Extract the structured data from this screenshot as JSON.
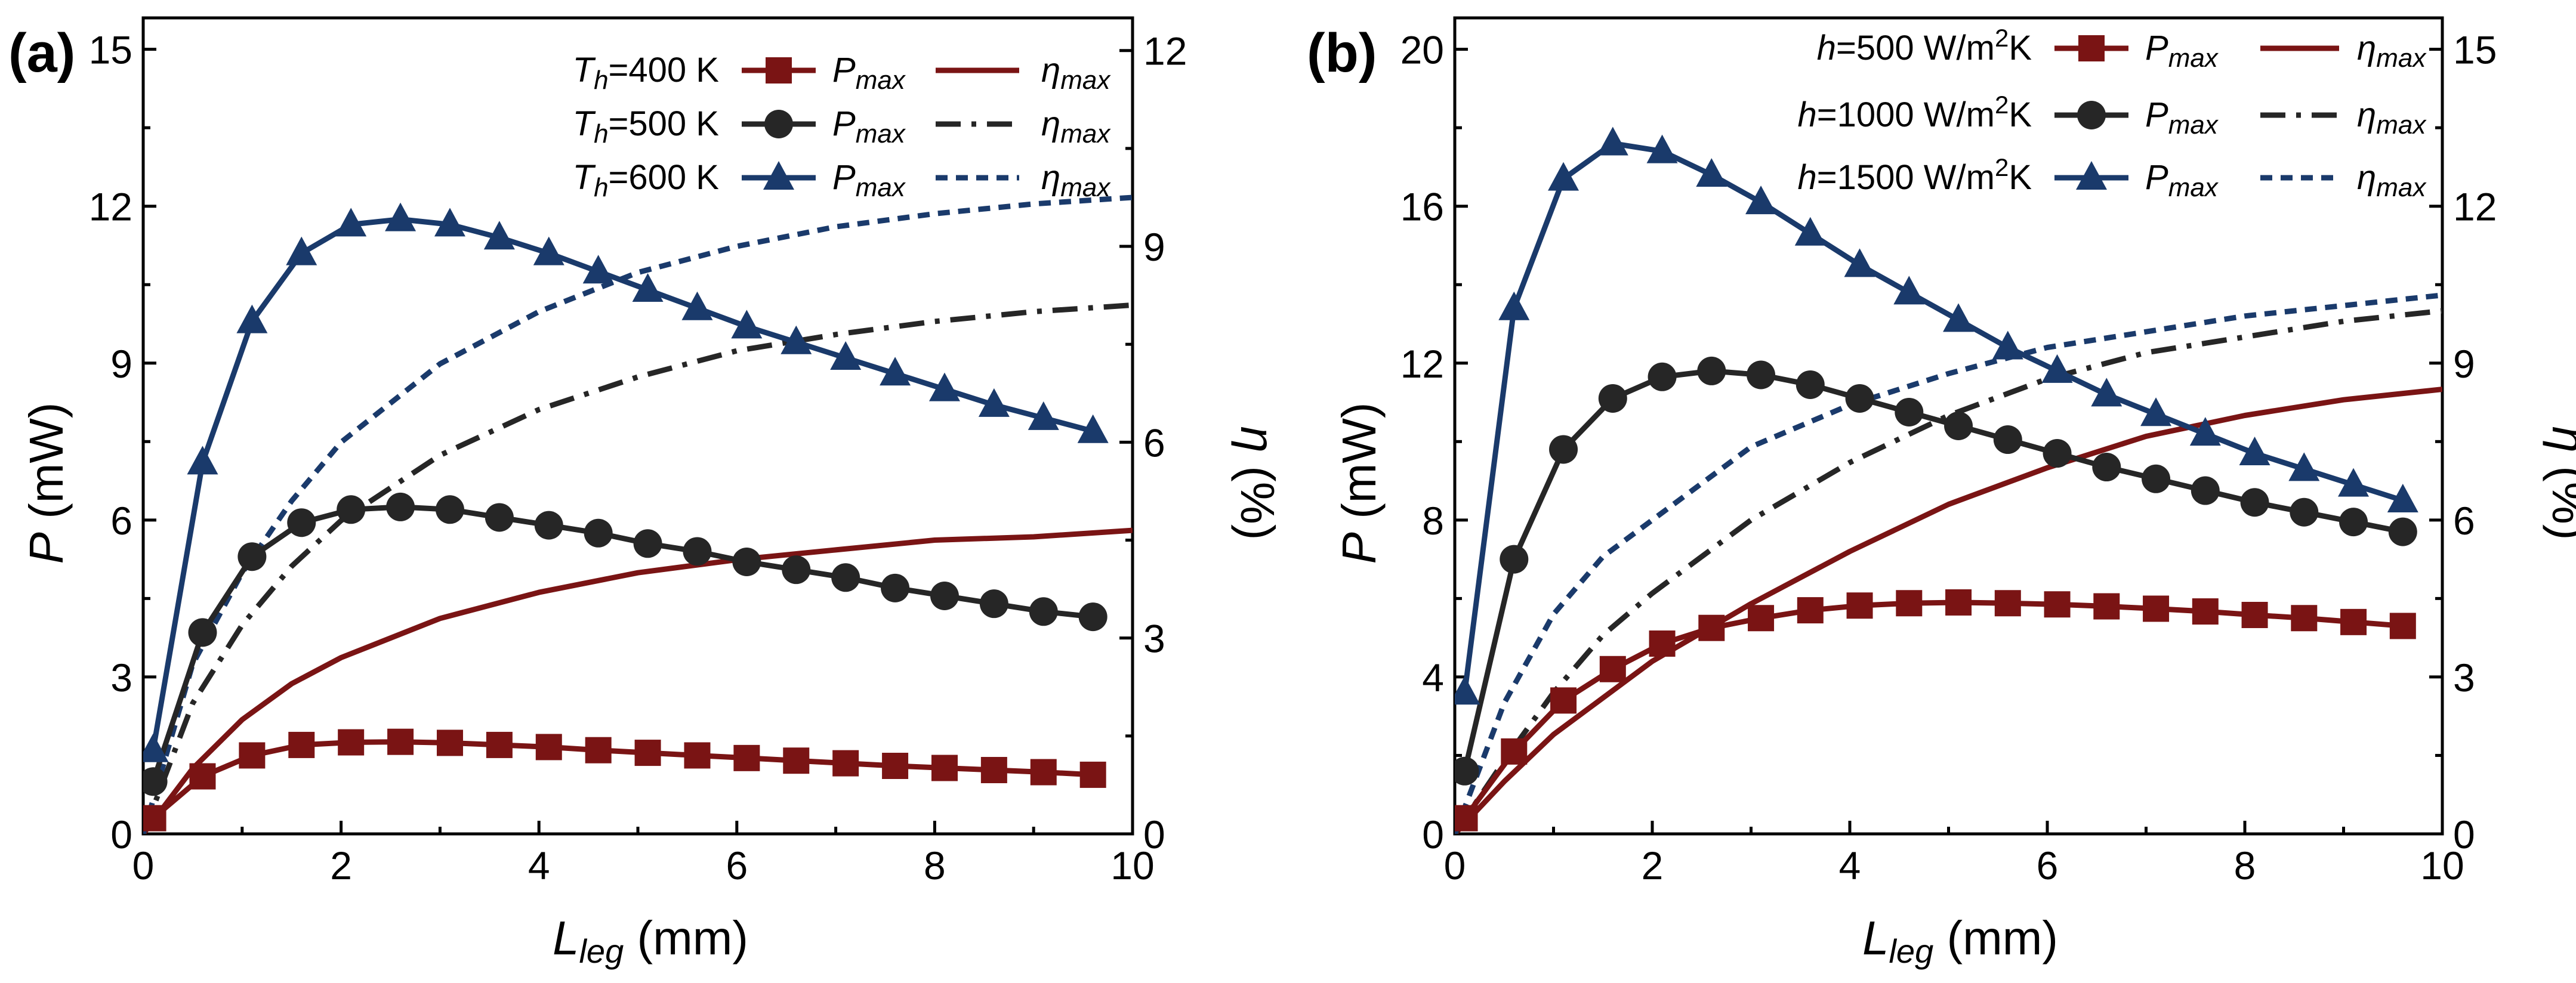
{
  "colors": {
    "red": "#7a1414",
    "black": "#262626",
    "blue": "#1a3a6b"
  },
  "chart_data": [
    {
      "type": "line",
      "panel_label": "(a)",
      "xlabel": "L_leg (mm)",
      "xlabel_parts": {
        "main": "L",
        "sub": "leg",
        "unit": " (mm)"
      },
      "ylabel": "P (mW)",
      "ylabel_parts": {
        "sym": "P",
        "unit": " (mW)"
      },
      "y2label": "η (%)",
      "y2label_parts": {
        "sym": "η",
        "unit": " (%)"
      },
      "xlim": [
        0,
        10
      ],
      "ylim": [
        0,
        15.6
      ],
      "y2lim": [
        0,
        12.5
      ],
      "xticks": [
        "0",
        "2",
        "4",
        "6",
        "8",
        "10"
      ],
      "yticks": [
        "0",
        "3",
        "6",
        "9",
        "12",
        "15"
      ],
      "y2ticks": [
        "0",
        "3",
        "6",
        "9",
        "12"
      ],
      "legend": {
        "position": "top-right",
        "rows": [
          {
            "label": "T_h=400 K",
            "var": "T",
            "sub": "h",
            "rest": "=400 K",
            "sup": "",
            "tail": ""
          },
          {
            "label": "T_h=500 K",
            "var": "T",
            "sub": "h",
            "rest": "=500 K",
            "sup": "",
            "tail": ""
          },
          {
            "label": "T_h=600 K",
            "var": "T",
            "sub": "h",
            "rest": "=600 K",
            "sup": "",
            "tail": ""
          }
        ],
        "pmax_label": {
          "sym": "P",
          "sub": "max"
        },
        "eta_label": {
          "sym": "η",
          "sub": "max"
        }
      },
      "x": [
        0.1,
        0.6,
        1.1,
        1.6,
        2.1,
        2.6,
        3.1,
        3.6,
        4.1,
        4.6,
        5.1,
        5.6,
        6.1,
        6.6,
        7.1,
        7.6,
        8.1,
        8.6,
        9.1,
        9.6
      ],
      "series": [
        {
          "name": "P_max T_h=400 K",
          "axis": "left",
          "marker": "square",
          "color": "red",
          "values": [
            0.3,
            1.1,
            1.5,
            1.7,
            1.75,
            1.76,
            1.74,
            1.7,
            1.66,
            1.6,
            1.55,
            1.5,
            1.45,
            1.4,
            1.35,
            1.3,
            1.26,
            1.22,
            1.18,
            1.13
          ]
        },
        {
          "name": "P_max T_h=500 K",
          "axis": "left",
          "marker": "circle",
          "color": "black",
          "values": [
            1.0,
            3.85,
            5.3,
            5.95,
            6.2,
            6.25,
            6.2,
            6.05,
            5.9,
            5.75,
            5.55,
            5.4,
            5.2,
            5.05,
            4.9,
            4.7,
            4.55,
            4.4,
            4.25,
            4.15
          ]
        },
        {
          "name": "P_max T_h=600 K",
          "axis": "left",
          "marker": "triangle",
          "color": "blue",
          "values": [
            1.6,
            7.1,
            9.8,
            11.1,
            11.65,
            11.75,
            11.65,
            11.4,
            11.1,
            10.75,
            10.4,
            10.05,
            9.7,
            9.4,
            9.1,
            8.8,
            8.5,
            8.2,
            7.95,
            7.7
          ]
        },
        {
          "name": "η_max T_h=400 K",
          "axis": "right",
          "line": "solid",
          "color": "red",
          "x": [
            0,
            0.5,
            1,
            1.5,
            2,
            3,
            4,
            5,
            6,
            7,
            8,
            9,
            10
          ],
          "values": [
            0,
            1.0,
            1.75,
            2.3,
            2.7,
            3.3,
            3.7,
            4.0,
            4.2,
            4.35,
            4.5,
            4.55,
            4.65
          ]
        },
        {
          "name": "η_max T_h=500 K",
          "axis": "right",
          "line": "dashdot",
          "color": "black",
          "x": [
            0,
            0.5,
            1,
            1.5,
            2,
            3,
            4,
            5,
            6,
            7,
            8,
            9,
            10
          ],
          "values": [
            0,
            2.0,
            3.2,
            4.1,
            4.8,
            5.8,
            6.5,
            7.0,
            7.4,
            7.65,
            7.85,
            8.0,
            8.1
          ]
        },
        {
          "name": "η_max T_h=600 K",
          "axis": "right",
          "line": "dash",
          "color": "blue",
          "x": [
            0,
            0.5,
            1,
            1.5,
            2,
            3,
            4,
            5,
            6,
            7,
            8,
            9,
            10
          ],
          "values": [
            0,
            2.6,
            4.0,
            5.1,
            6.0,
            7.2,
            8.0,
            8.6,
            9.0,
            9.3,
            9.5,
            9.65,
            9.75
          ]
        }
      ]
    },
    {
      "type": "line",
      "panel_label": "(b)",
      "xlabel": "L_leg (mm)",
      "xlabel_parts": {
        "main": "L",
        "sub": "leg",
        "unit": " (mm)"
      },
      "ylabel": "P (mW)",
      "ylabel_parts": {
        "sym": "P",
        "unit": " (mW)"
      },
      "y2label": "η (%)",
      "y2label_parts": {
        "sym": "η",
        "unit": " (%)"
      },
      "xlim": [
        0,
        10
      ],
      "ylim": [
        0,
        20.8
      ],
      "y2lim": [
        0,
        15.6
      ],
      "xticks": [
        "0",
        "2",
        "4",
        "6",
        "8",
        "10"
      ],
      "yticks": [
        "0",
        "4",
        "8",
        "12",
        "16",
        "20"
      ],
      "y2ticks": [
        "0",
        "3",
        "6",
        "9",
        "12",
        "15"
      ],
      "legend": {
        "position": "top-right",
        "rows": [
          {
            "label": "h=500 W/m2K",
            "var": "h",
            "sub": "",
            "rest": "=500 W/m",
            "sup": "2",
            "tail": "K"
          },
          {
            "label": "h=1000 W/m2K",
            "var": "h",
            "sub": "",
            "rest": "=1000 W/m",
            "sup": "2",
            "tail": "K"
          },
          {
            "label": "h=1500 W/m2K",
            "var": "h",
            "sub": "",
            "rest": "=1500 W/m",
            "sup": "2",
            "tail": "K"
          }
        ],
        "pmax_label": {
          "sym": "P",
          "sub": "max"
        },
        "eta_label": {
          "sym": "η",
          "sub": "max"
        }
      },
      "x": [
        0.1,
        0.6,
        1.1,
        1.6,
        2.1,
        2.6,
        3.1,
        3.6,
        4.1,
        4.6,
        5.1,
        5.6,
        6.1,
        6.6,
        7.1,
        7.6,
        8.1,
        8.6,
        9.1,
        9.6
      ],
      "series": [
        {
          "name": "P_max h=500 W/m2K",
          "axis": "left",
          "marker": "square",
          "color": "red",
          "values": [
            0.4,
            2.1,
            3.4,
            4.2,
            4.85,
            5.25,
            5.5,
            5.7,
            5.82,
            5.88,
            5.9,
            5.88,
            5.85,
            5.8,
            5.74,
            5.67,
            5.58,
            5.5,
            5.4,
            5.3
          ]
        },
        {
          "name": "P_max h=1000 W/m2K",
          "axis": "left",
          "marker": "circle",
          "color": "black",
          "values": [
            1.6,
            7.0,
            9.8,
            11.1,
            11.65,
            11.8,
            11.7,
            11.45,
            11.1,
            10.75,
            10.4,
            10.05,
            9.7,
            9.35,
            9.05,
            8.75,
            8.45,
            8.2,
            7.95,
            7.7
          ]
        },
        {
          "name": "P_max h=1500 W/m2K",
          "axis": "left",
          "marker": "triangle",
          "color": "blue",
          "values": [
            3.6,
            13.4,
            16.7,
            17.6,
            17.4,
            16.8,
            16.1,
            15.3,
            14.5,
            13.8,
            13.1,
            12.4,
            11.8,
            11.2,
            10.7,
            10.2,
            9.7,
            9.3,
            8.9,
            8.5
          ]
        },
        {
          "name": "η_max h=500 W/m2K",
          "axis": "right",
          "line": "solid",
          "color": "red",
          "x": [
            0,
            0.5,
            1,
            1.5,
            2,
            3,
            4,
            5,
            6,
            7,
            8,
            9,
            10
          ],
          "values": [
            0,
            1.0,
            1.9,
            2.6,
            3.3,
            4.4,
            5.4,
            6.3,
            7.0,
            7.6,
            8.0,
            8.3,
            8.5
          ]
        },
        {
          "name": "η_max h=1000 W/m2K",
          "axis": "right",
          "line": "dashdot",
          "color": "black",
          "x": [
            0,
            0.5,
            1,
            1.5,
            2,
            3,
            4,
            5,
            6,
            7,
            8,
            9,
            10
          ],
          "values": [
            0,
            1.4,
            2.7,
            3.8,
            4.6,
            6.0,
            7.1,
            8.0,
            8.7,
            9.2,
            9.5,
            9.8,
            10.0
          ]
        },
        {
          "name": "η_max h=1500 W/m2K",
          "axis": "right",
          "line": "dash",
          "color": "blue",
          "x": [
            0,
            0.5,
            1,
            1.5,
            2,
            3,
            4,
            5,
            6,
            7,
            8,
            9,
            10
          ],
          "values": [
            0,
            2.5,
            4.2,
            5.3,
            6.0,
            7.4,
            8.2,
            8.8,
            9.3,
            9.6,
            9.9,
            10.1,
            10.3
          ]
        }
      ]
    }
  ]
}
